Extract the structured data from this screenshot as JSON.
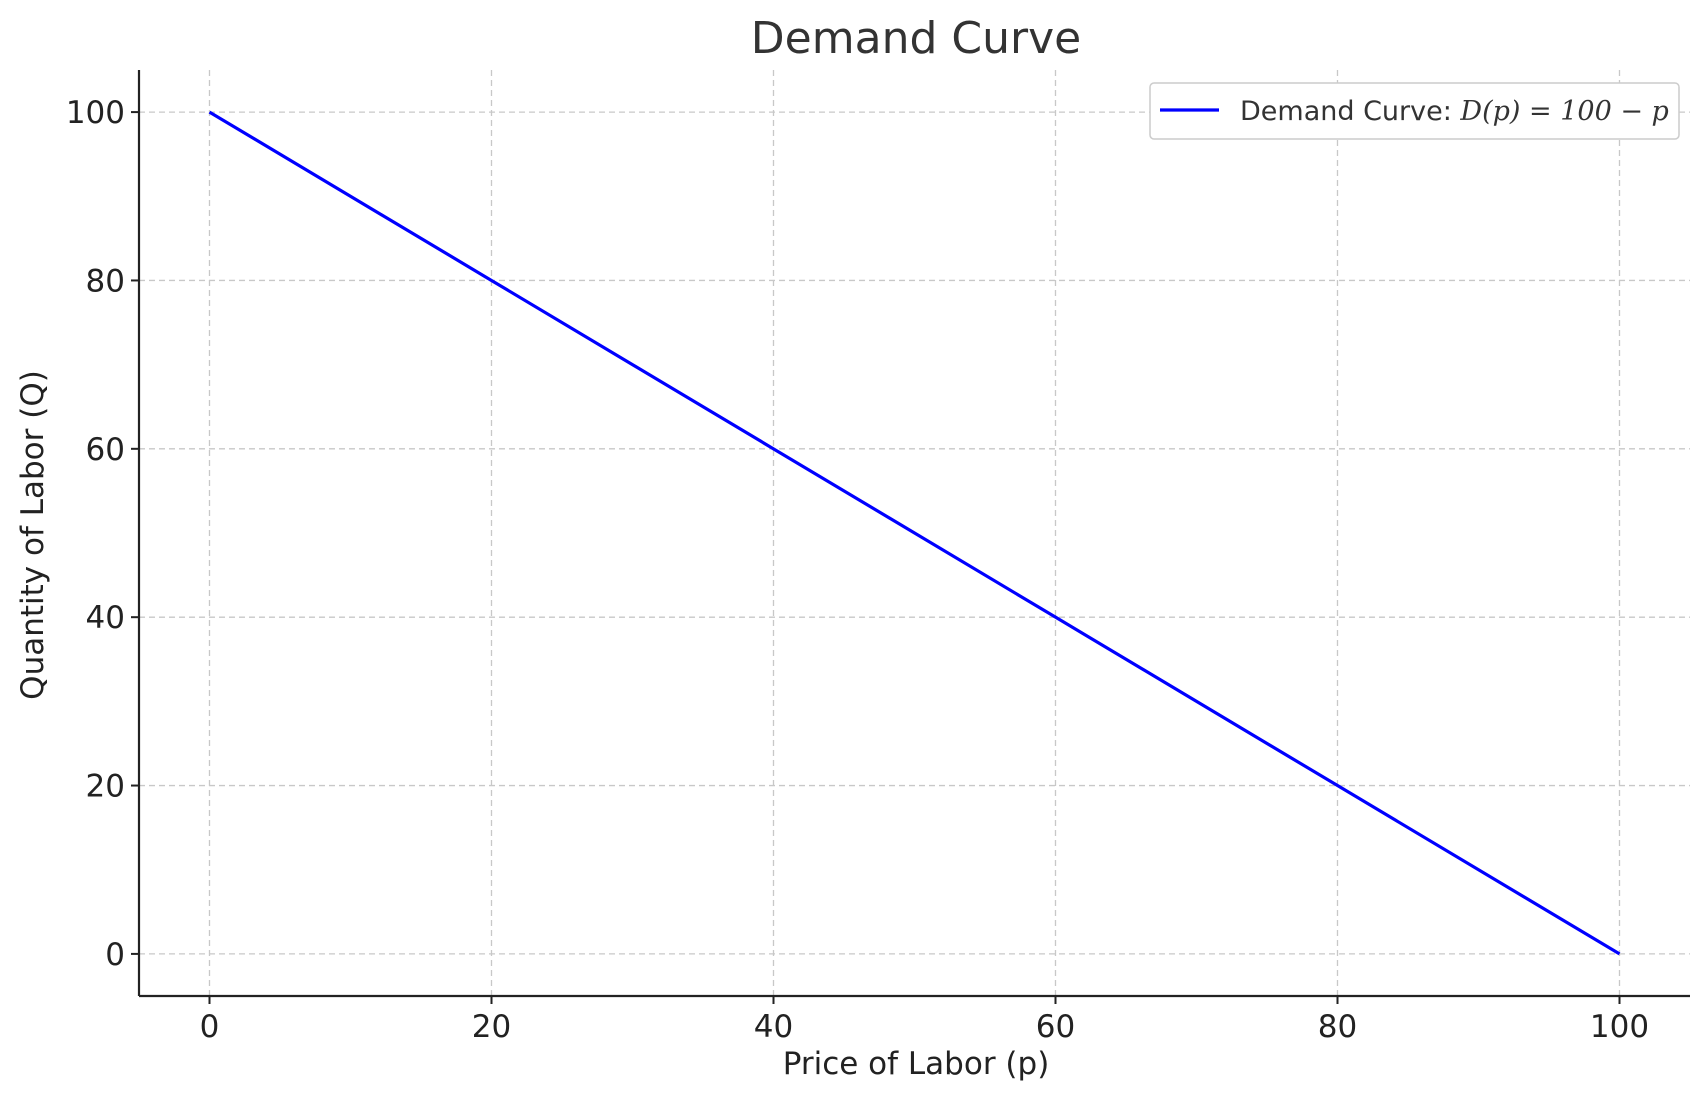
{
  "chart_data": {
    "type": "line",
    "title": "Demand Curve",
    "xlabel": "Price of Labor (p)",
    "ylabel": "Quantity of Labor (Q)",
    "xlim": [
      -5,
      105
    ],
    "ylim": [
      -5,
      105
    ],
    "xticks": [
      0,
      20,
      40,
      60,
      80,
      100
    ],
    "yticks": [
      0,
      20,
      40,
      60,
      80,
      100
    ],
    "grid": true,
    "legend_position": "top-right",
    "series": [
      {
        "name": "Demand Curve: D(p) = 100 − p",
        "legend_prefix": "Demand Curve: ",
        "legend_formula": "D(p) = 100 − p",
        "color": "#0000ff",
        "x": [
          0,
          20,
          40,
          60,
          80,
          100
        ],
        "y": [
          100,
          80,
          60,
          40,
          20,
          0
        ]
      }
    ]
  }
}
